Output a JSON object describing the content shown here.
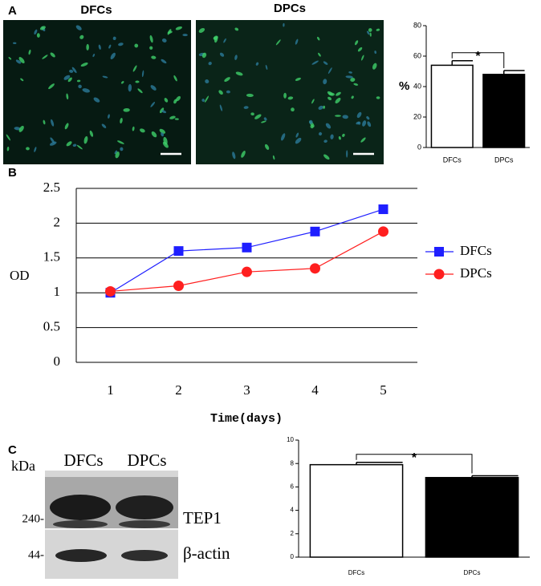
{
  "figure": {
    "panel_labels": [
      "A",
      "B",
      "C"
    ],
    "image_labels": [
      "DFCs",
      "DPCs"
    ],
    "blot": {
      "kda": "kDa",
      "lanes": [
        "DFCs",
        "DPCs"
      ],
      "markers": [
        "240-",
        "44-"
      ],
      "bands": [
        "TEP1",
        "β-actin"
      ]
    }
  },
  "chart_data": [
    {
      "type": "bar",
      "categories": [
        "DFCs",
        "DPCs"
      ],
      "values": [
        54,
        48
      ],
      "errors": [
        3,
        2.5
      ],
      "colors": [
        "#ffffff",
        "#000000"
      ],
      "ylabel": "%",
      "annotation": "*",
      "ylim": [
        0,
        80
      ],
      "yticks": [
        0,
        20,
        40,
        60,
        80
      ]
    },
    {
      "type": "line",
      "x": [
        1,
        2,
        3,
        4,
        5
      ],
      "xlabel": "Time(days)",
      "ylabel": "OD",
      "series": [
        {
          "name": "DFCs",
          "color": "#1f1fff",
          "marker": "square",
          "values": [
            1.0,
            1.6,
            1.65,
            1.88,
            2.2
          ]
        },
        {
          "name": "DPCs",
          "color": "#ff1f1f",
          "marker": "circle",
          "values": [
            1.02,
            1.1,
            1.3,
            1.35,
            1.88
          ]
        }
      ],
      "xlim": [
        0.5,
        5.5
      ],
      "xticks": [
        1,
        2,
        3,
        4,
        5
      ],
      "ylim": [
        0,
        2.5
      ],
      "yticks": [
        0,
        0.5,
        1,
        1.5,
        2,
        2.5
      ],
      "grid": true,
      "legend": "right"
    },
    {
      "type": "bar",
      "categories": [
        "DFCs",
        "DPCs"
      ],
      "values": [
        7.9,
        6.8
      ],
      "errors": [
        0.2,
        0.15
      ],
      "colors": [
        "#ffffff",
        "#000000"
      ],
      "annotation": "*",
      "ylim": [
        0,
        10
      ],
      "yticks": [
        0,
        2,
        4,
        6,
        8,
        10
      ]
    }
  ]
}
